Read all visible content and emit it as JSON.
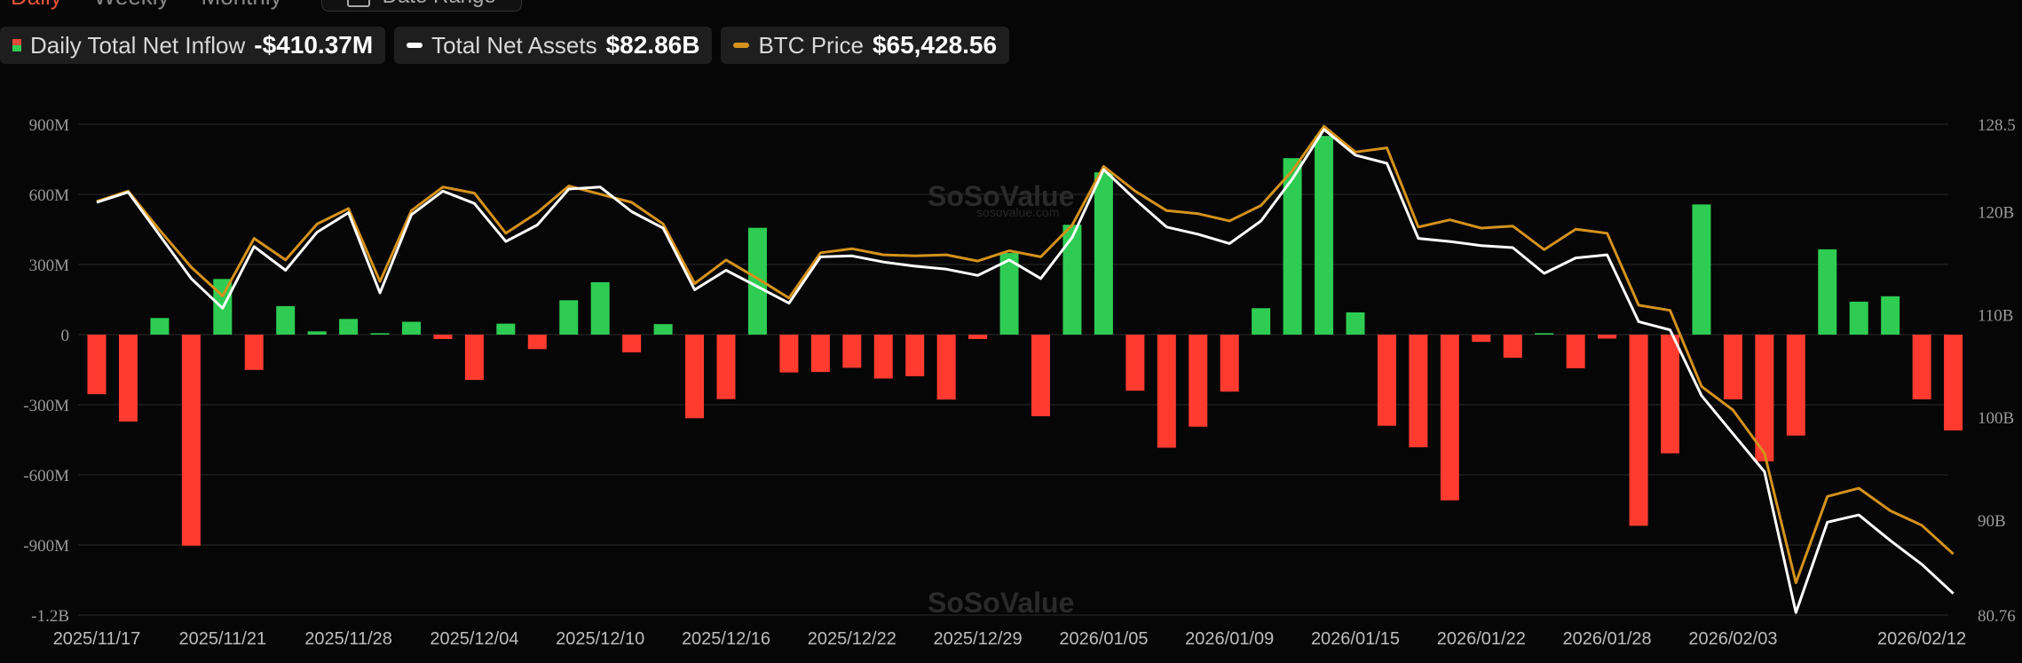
{
  "toolbar": {
    "tabs": [
      "Daily",
      "Weekly",
      "Monthly"
    ],
    "date_range_label": "Date Range"
  },
  "legend": {
    "inflow_label": "Daily Total Net Inflow",
    "inflow_value": "-$410.37M",
    "assets_label": "Total Net Assets",
    "assets_value": "$82.86B",
    "btc_label": "BTC Price",
    "btc_value": "$65,428.56"
  },
  "watermark": {
    "name": "SoSoValue",
    "url": "sosovalue.com"
  },
  "colors": {
    "positive": "#2ecc52",
    "negative": "#ff3b30",
    "assets_line": "#ffffff",
    "btc_line": "#d4921c",
    "grid": "#2b2b2b"
  },
  "chart_data": {
    "type": "bar",
    "left_axis": {
      "ticks": [
        "900M",
        "600M",
        "300M",
        "0",
        "-300M",
        "-600M",
        "-900M",
        "-1.2B"
      ],
      "range": [
        -1200,
        900
      ],
      "unit": "M"
    },
    "right_axis": {
      "ticks": [
        "128.5",
        "120B",
        "110B",
        "100B",
        "90B",
        "80.76"
      ],
      "range": [
        80.76,
        128.5
      ]
    },
    "x_tick_labels": [
      "2025/11/17",
      "2025/11/21",
      "2025/11/28",
      "2025/12/04",
      "2025/12/10",
      "2025/12/16",
      "2025/12/22",
      "2025/12/29",
      "2026/01/05",
      "2026/01/09",
      "2026/01/15",
      "2026/01/22",
      "2026/01/28",
      "2026/02/03",
      "2026/02/12"
    ],
    "x_tick_indices": [
      0,
      4,
      8,
      12,
      16,
      20,
      24,
      28,
      32,
      36,
      40,
      44,
      48,
      52,
      58
    ],
    "series": [
      {
        "name": "Daily Total Net Inflow",
        "values": [
          -255,
          -372,
          71,
          -903,
          238,
          -151,
          122,
          14,
          67,
          6,
          55,
          -19,
          -194,
          47,
          -62,
          147,
          224,
          -76,
          45,
          -358,
          -276,
          457,
          -162,
          -160,
          -142,
          -188,
          -178,
          -278,
          -19,
          349,
          -349,
          470,
          694,
          -240,
          -484,
          -394,
          -244,
          113,
          755,
          850,
          95,
          -390,
          -482,
          -709,
          -31,
          -99,
          6,
          -144,
          -17,
          -818,
          -508,
          557,
          -277,
          -542,
          -432,
          365,
          141,
          164,
          -277,
          -410
        ]
      },
      {
        "name": "Total Net Assets",
        "values": [
          120.9,
          121.9,
          117.7,
          113.5,
          110.6,
          116.6,
          114.3,
          118.0,
          119.9,
          112.1,
          119.7,
          122.0,
          120.8,
          117.1,
          118.7,
          122.2,
          122.4,
          120.0,
          118.4,
          112.4,
          114.3,
          112.7,
          111.1,
          115.6,
          115.7,
          115.1,
          114.7,
          114.4,
          113.8,
          115.3,
          113.5,
          117.5,
          124.1,
          121.2,
          118.5,
          117.8,
          116.9,
          119.1,
          123.2,
          128.0,
          125.5,
          124.7,
          117.4,
          117.1,
          116.7,
          116.5,
          114.0,
          115.5,
          115.8,
          109.3,
          108.5,
          102.1,
          98.4,
          94.7,
          81.0,
          89.8,
          90.5,
          88.0,
          85.7,
          82.86
        ]
      },
      {
        "name": "BTC Price",
        "values": [
          121.0,
          122.0,
          118.2,
          114.6,
          111.8,
          117.4,
          115.3,
          118.8,
          120.3,
          113.2,
          120.1,
          122.4,
          121.8,
          117.9,
          119.9,
          122.5,
          121.7,
          120.9,
          118.8,
          113.0,
          115.3,
          113.5,
          111.6,
          116.0,
          116.4,
          115.8,
          115.7,
          115.8,
          115.2,
          116.2,
          115.6,
          118.7,
          124.4,
          122.0,
          120.1,
          119.8,
          119.1,
          120.6,
          124.0,
          128.3,
          125.8,
          126.2,
          118.5,
          119.2,
          118.4,
          118.6,
          116.3,
          118.3,
          117.9,
          110.9,
          110.4,
          103.0,
          100.7,
          96.5,
          83.9,
          92.3,
          93.1,
          90.9,
          89.5,
          86.7
        ]
      }
    ]
  }
}
